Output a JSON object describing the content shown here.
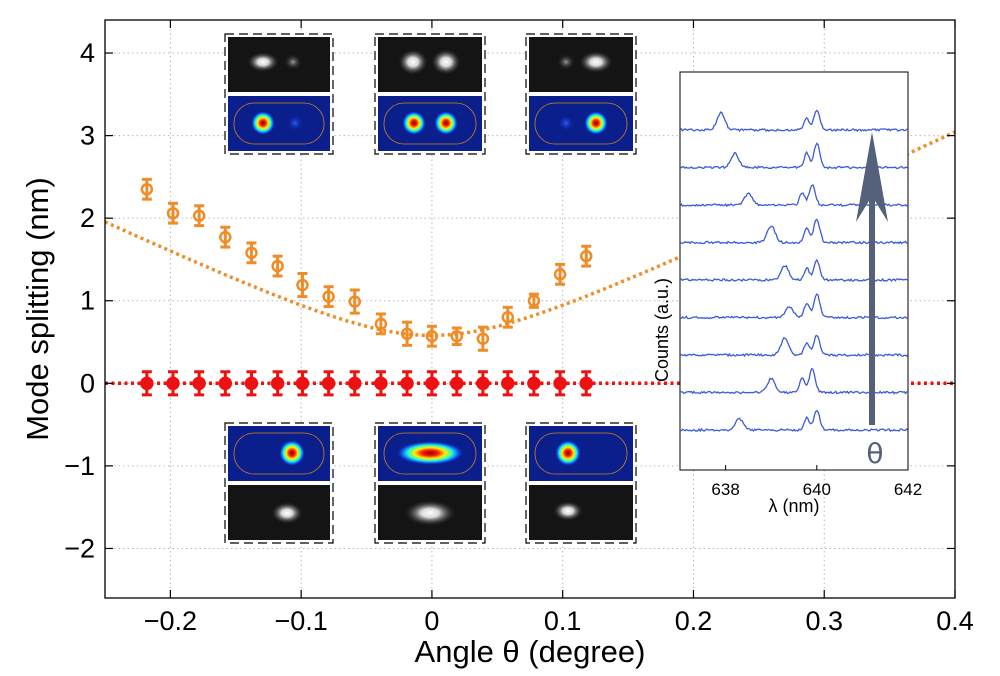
{
  "chart_data": [
    {
      "type": "scatter",
      "title": "",
      "xlabel": "Angle θ (degree)",
      "ylabel": "Mode splitting (nm)",
      "xlim": [
        -0.25,
        0.4
      ],
      "ylim": [
        -2.6,
        4.4
      ],
      "xticks": [
        -0.2,
        -0.1,
        0,
        0.1,
        0.2,
        0.3,
        0.4
      ],
      "xtick_labels": [
        "−0.2",
        "−0.1",
        "0",
        "0.1",
        "0.2",
        "0.3",
        "0.4"
      ],
      "yticks": [
        -2,
        -1,
        0,
        1,
        2,
        3,
        4
      ],
      "ytick_labels": [
        "−2",
        "−1",
        "0",
        "1",
        "2",
        "3",
        "4"
      ],
      "grid": true,
      "series": [
        {
          "name": "orange data (mode splitting with error bars)",
          "color": "#f08c28",
          "marker": "open-circle",
          "x": [
            -0.218,
            -0.198,
            -0.178,
            -0.158,
            -0.138,
            -0.118,
            -0.099,
            -0.079,
            -0.059,
            -0.039,
            -0.019,
            0.0,
            0.019,
            0.039,
            0.058,
            0.078,
            0.098,
            0.118
          ],
          "y": [
            2.35,
            2.06,
            2.03,
            1.77,
            1.58,
            1.42,
            1.19,
            1.05,
            0.99,
            0.72,
            0.6,
            0.57,
            0.57,
            0.54,
            0.8,
            1.0,
            1.32,
            1.54
          ],
          "err": [
            0.12,
            0.12,
            0.12,
            0.12,
            0.12,
            0.12,
            0.14,
            0.12,
            0.14,
            0.12,
            0.14,
            0.12,
            0.1,
            0.14,
            0.12,
            0.08,
            0.12,
            0.12
          ]
        },
        {
          "name": "red data (mode splitting with error bars)",
          "color": "#ee1111",
          "marker": "filled-circle",
          "x": [
            -0.218,
            -0.198,
            -0.178,
            -0.158,
            -0.138,
            -0.118,
            -0.099,
            -0.079,
            -0.059,
            -0.039,
            -0.019,
            0.0,
            0.019,
            0.039,
            0.058,
            0.078,
            0.098,
            0.118
          ],
          "y": [
            0.0,
            0.0,
            0.0,
            0.0,
            0.0,
            0.0,
            0.0,
            0.0,
            0.0,
            0.0,
            0.0,
            0.0,
            0.0,
            0.0,
            0.0,
            0.0,
            0.0,
            0.0
          ],
          "err": [
            0.14,
            0.14,
            0.14,
            0.14,
            0.14,
            0.14,
            0.14,
            0.14,
            0.14,
            0.14,
            0.14,
            0.14,
            0.14,
            0.14,
            0.14,
            0.14,
            0.14,
            0.14
          ]
        }
      ],
      "fits": [
        {
          "name": "orange dotted fit",
          "color": "#f08c28",
          "form": "sqrt(a^2 + b*x^2)",
          "a": 0.58,
          "b": 55.8
        },
        {
          "name": "red dotted fit",
          "color": "#ee1111",
          "form": "constant",
          "value": 0.0
        }
      ],
      "insets": {
        "top_row": [
          "mode image pair (left lobe brighter)",
          "mode image pair (two equal lobes)",
          "mode image pair (right lobe brighter)"
        ],
        "bottom_row": [
          "mode image pair (single spot, right of center)",
          "mode image pair (elongated central spot)",
          "mode image pair (single spot, left of center)"
        ]
      }
    },
    {
      "type": "line",
      "title": "",
      "xlabel": "λ (nm)",
      "ylabel": "Counts (a.u.)",
      "xlim": [
        637,
        642
      ],
      "xticks": [
        638,
        640,
        642
      ],
      "xtick_labels": [
        "638",
        "640",
        "642"
      ],
      "color": "#3b5bdb",
      "series_count": 9,
      "peak_pairs_nm": [
        [
          638.3,
          640.0
        ],
        [
          639.0,
          639.9
        ],
        [
          639.3,
          640.0
        ],
        [
          639.4,
          640.0
        ],
        [
          639.3,
          640.0
        ],
        [
          639.0,
          640.0
        ],
        [
          638.5,
          639.9
        ],
        [
          638.2,
          640.0
        ],
        [
          637.9,
          640.0
        ]
      ],
      "arrow_label": "θ",
      "arrow_color": "#55607a"
    }
  ]
}
